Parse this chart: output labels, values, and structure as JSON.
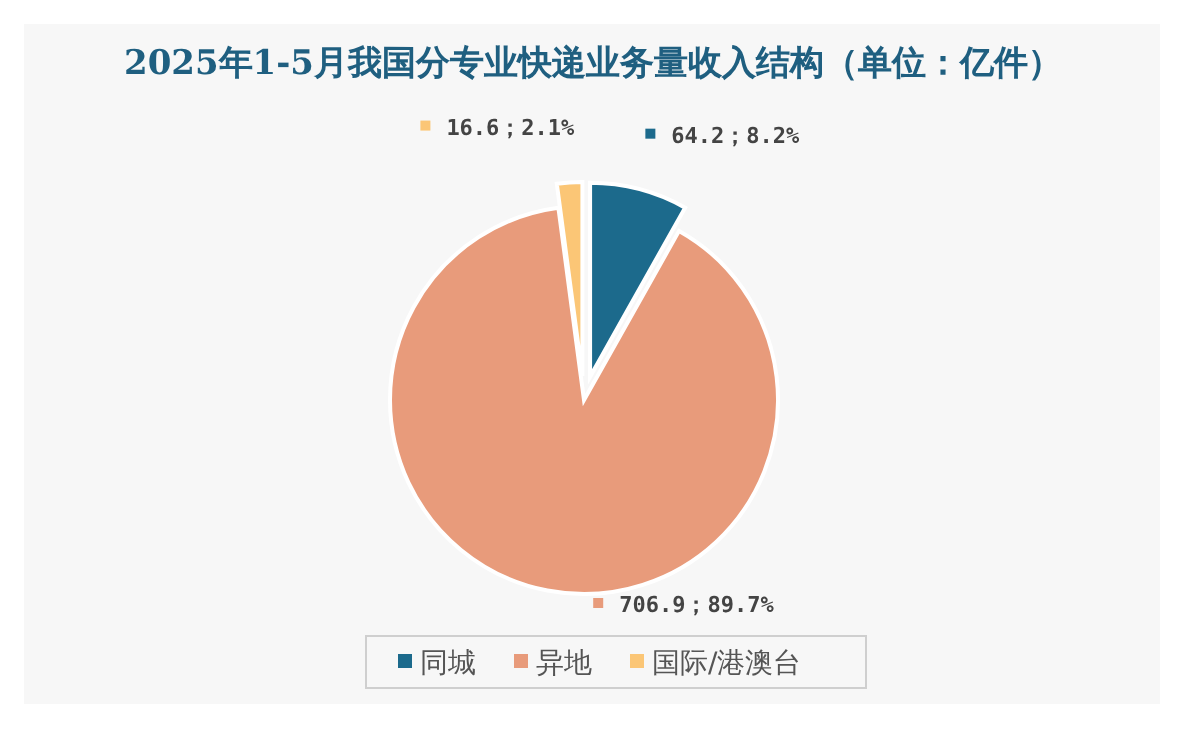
{
  "chart_data": {
    "type": "pie",
    "title": "2025年1-5月我国分专业快递业务量收入结构（单位：亿件）",
    "categories": [
      "同城",
      "异地",
      "国际/港澳台"
    ],
    "values": [
      64.2,
      706.9,
      16.6
    ],
    "colors": [
      "#1c6a8c",
      "#e89b7b",
      "#fbc676"
    ],
    "value_labels": [
      "64.2；8.2%",
      "706.9；89.7%",
      "16.6；2.1%"
    ],
    "legend": "bottom"
  }
}
